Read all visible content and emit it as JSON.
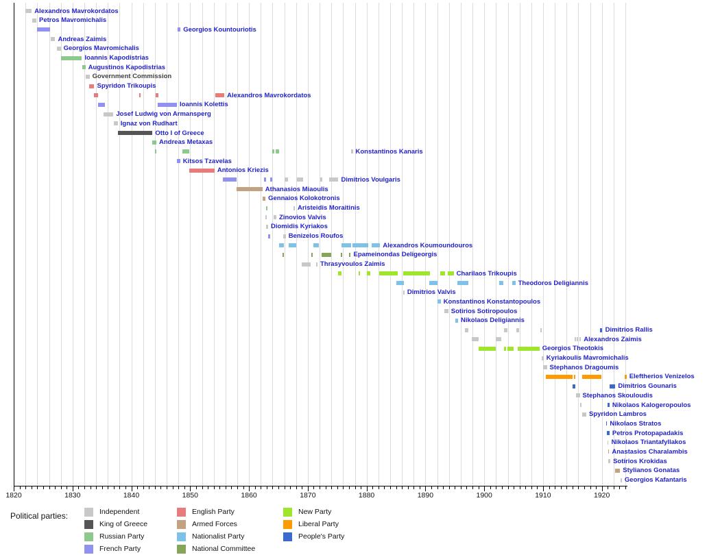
{
  "chart_data": {
    "type": "timeline",
    "title": "",
    "legend_title": "Political parties:",
    "x_axis": {
      "start": 1820,
      "end": 1924.5,
      "decade_tick_labels": [
        "1820",
        "1830",
        "1840",
        "1850",
        "1860",
        "1870",
        "1880",
        "1890",
        "1900",
        "1910",
        "1920"
      ],
      "minor_tick_every_years": 1,
      "gridline_every_years": 2,
      "gridline_color": "#dcdcdc",
      "axis_color": "#000000"
    },
    "label_color": "#2222cc",
    "parties": {
      "ind": {
        "label": "Independent",
        "color": "#c8c8c8"
      },
      "king": {
        "label": "King of Greece",
        "color": "#555555"
      },
      "rus": {
        "label": "Russian Party",
        "color": "#8dc88d"
      },
      "fr": {
        "label": "French Party",
        "color": "#9191ef"
      },
      "eng": {
        "label": "English Party",
        "color": "#e87b7b"
      },
      "arm": {
        "label": "Armed Forces",
        "color": "#c3a281"
      },
      "nat": {
        "label": "Nationalist Party",
        "color": "#7ec2e8"
      },
      "nc": {
        "label": "National Committee",
        "color": "#86a558"
      },
      "new": {
        "label": "New Party",
        "color": "#9fe52c"
      },
      "lib": {
        "label": "Liberal Party",
        "color": "#ff9b00"
      },
      "peo": {
        "label": "People's Party",
        "color": "#3a6ad0"
      }
    },
    "legend_columns": [
      [
        "ind",
        "king",
        "rus",
        "fr"
      ],
      [
        "eng",
        "arm",
        "nat",
        "nc"
      ],
      [
        "new",
        "lib",
        "peo"
      ]
    ],
    "people": [
      {
        "name": "Alexandros Mavrokordatos",
        "segments": [
          {
            "s": 1822.0,
            "e": 1823.05,
            "p": "ind"
          }
        ]
      },
      {
        "name": "Petros Mavromichalis",
        "segments": [
          {
            "s": 1823.1,
            "e": 1823.85,
            "p": "ind"
          }
        ]
      },
      {
        "name": "Georgios Kountouriotis",
        "segments": [
          {
            "s": 1823.9,
            "e": 1826.2,
            "p": "fr"
          },
          {
            "s": 1847.9,
            "e": 1848.35,
            "p": "fr"
          }
        ]
      },
      {
        "name": "Andreas Zaimis",
        "segments": [
          {
            "s": 1826.3,
            "e": 1827.05,
            "p": "ind"
          }
        ]
      },
      {
        "name": "Georgios Mavromichalis",
        "segments": [
          {
            "s": 1827.3,
            "e": 1828.0,
            "p": "ind"
          }
        ]
      },
      {
        "name": "Ioannis Kapodistrias",
        "segments": [
          {
            "s": 1828.0,
            "e": 1831.6,
            "p": "rus"
          }
        ]
      },
      {
        "name": "Augustinos Kapodistrias",
        "segments": [
          {
            "s": 1831.65,
            "e": 1832.2,
            "p": "rus"
          }
        ]
      },
      {
        "name": "Government Commission",
        "text_color": "#404040",
        "segments": [
          {
            "s": 1832.25,
            "e": 1832.9,
            "p": "ind"
          }
        ]
      },
      {
        "name": "Spyridon Trikoupis",
        "segments": [
          {
            "s": 1832.85,
            "e": 1833.7,
            "p": "eng"
          }
        ]
      },
      {
        "name": "Alexandros Mavrokordatos",
        "segments": [
          {
            "s": 1833.65,
            "e": 1834.4,
            "p": "eng"
          },
          {
            "s": 1841.3,
            "e": 1841.55,
            "p": "eng"
          },
          {
            "s": 1844.1,
            "e": 1844.6,
            "p": "eng"
          },
          {
            "s": 1854.3,
            "e": 1855.8,
            "p": "eng"
          }
        ]
      },
      {
        "name": "Ioannis Kolettis",
        "segments": [
          {
            "s": 1834.35,
            "e": 1835.5,
            "p": "fr"
          },
          {
            "s": 1844.5,
            "e": 1847.75,
            "p": "fr"
          }
        ]
      },
      {
        "name": "Josef Ludwig von Armansperg",
        "segments": [
          {
            "s": 1835.3,
            "e": 1836.95,
            "p": "ind"
          }
        ]
      },
      {
        "name": "Ignaz von Rudhart",
        "segments": [
          {
            "s": 1837.0,
            "e": 1837.7,
            "p": "ind"
          }
        ]
      },
      {
        "name": "Otto I of Greece",
        "segments": [
          {
            "s": 1837.7,
            "e": 1843.6,
            "p": "king"
          }
        ]
      },
      {
        "name": "Andreas Metaxas",
        "segments": [
          {
            "s": 1843.55,
            "e": 1844.25,
            "p": "rus"
          }
        ]
      },
      {
        "name": "Konstantinos Kanaris",
        "segments": [
          {
            "s": 1844.05,
            "e": 1844.3,
            "p": "rus"
          },
          {
            "s": 1848.7,
            "e": 1849.9,
            "p": "rus"
          },
          {
            "s": 1864.0,
            "e": 1864.35,
            "p": "rus"
          },
          {
            "s": 1864.55,
            "e": 1865.1,
            "p": "rus"
          },
          {
            "s": 1877.3,
            "e": 1877.65,
            "p": "ind"
          }
        ]
      },
      {
        "name": "Kitsos Tzavelas",
        "segments": [
          {
            "s": 1847.7,
            "e": 1848.3,
            "p": "fr"
          }
        ]
      },
      {
        "name": "Antonios Kriezis",
        "segments": [
          {
            "s": 1849.85,
            "e": 1854.15,
            "p": "eng"
          }
        ]
      },
      {
        "name": "Dimitrios Voulgaris",
        "segments": [
          {
            "s": 1855.55,
            "e": 1857.9,
            "p": "fr"
          },
          {
            "s": 1862.55,
            "e": 1862.85,
            "p": "fr"
          },
          {
            "s": 1863.65,
            "e": 1863.95,
            "p": "fr"
          },
          {
            "s": 1866.05,
            "e": 1866.65,
            "p": "ind"
          },
          {
            "s": 1868.15,
            "e": 1869.25,
            "p": "ind"
          },
          {
            "s": 1872.1,
            "e": 1872.45,
            "p": "ind"
          },
          {
            "s": 1873.65,
            "e": 1875.2,
            "p": "ind"
          }
        ]
      },
      {
        "name": "Athanasios Miaoulis",
        "segments": [
          {
            "s": 1857.9,
            "e": 1862.3,
            "p": "arm"
          }
        ]
      },
      {
        "name": "Gennaios Kolokotronis",
        "segments": [
          {
            "s": 1862.3,
            "e": 1862.8,
            "p": "arm"
          }
        ]
      },
      {
        "name": "Aristeidis Moraitinis",
        "segments": [
          {
            "s": 1862.85,
            "e": 1863.1,
            "p": "rus"
          },
          {
            "s": 1867.55,
            "e": 1867.8,
            "p": "ind"
          }
        ]
      },
      {
        "name": "Zinovios Valvis",
        "segments": [
          {
            "s": 1862.8,
            "e": 1863.0,
            "p": "ind"
          },
          {
            "s": 1864.15,
            "e": 1864.65,
            "p": "ind"
          }
        ]
      },
      {
        "name": "Diomidis Kyriakos",
        "segments": [
          {
            "s": 1862.85,
            "e": 1863.25,
            "p": "ind"
          }
        ]
      },
      {
        "name": "Benizelos Roufos",
        "segments": [
          {
            "s": 1863.2,
            "e": 1863.6,
            "p": "fr"
          },
          {
            "s": 1865.8,
            "e": 1866.25,
            "p": "ind"
          }
        ]
      },
      {
        "name": "Alexandros Koumoundouros",
        "segments": [
          {
            "s": 1865.1,
            "e": 1866.0,
            "p": "nat"
          },
          {
            "s": 1866.8,
            "e": 1868.0,
            "p": "nat"
          },
          {
            "s": 1870.9,
            "e": 1871.85,
            "p": "nat"
          },
          {
            "s": 1875.7,
            "e": 1877.35,
            "p": "nat"
          },
          {
            "s": 1877.6,
            "e": 1880.3,
            "p": "nat"
          },
          {
            "s": 1880.8,
            "e": 1882.3,
            "p": "nat"
          }
        ]
      },
      {
        "name": "Epameinondas Deligeorgis",
        "segments": [
          {
            "s": 1865.65,
            "e": 1865.95,
            "p": "nc"
          },
          {
            "s": 1870.55,
            "e": 1870.85,
            "p": "nc"
          },
          {
            "s": 1872.4,
            "e": 1874.0,
            "p": "nc"
          },
          {
            "s": 1875.55,
            "e": 1875.8,
            "p": "nc"
          },
          {
            "s": 1877.0,
            "e": 1877.3,
            "p": "nc"
          }
        ]
      },
      {
        "name": "Thrasyvoulos Zaimis",
        "segments": [
          {
            "s": 1868.95,
            "e": 1870.5,
            "p": "ind"
          },
          {
            "s": 1871.4,
            "e": 1871.65,
            "p": "ind"
          }
        ]
      },
      {
        "name": "Charilaos Trikoupis",
        "segments": [
          {
            "s": 1875.1,
            "e": 1875.7,
            "p": "new"
          },
          {
            "s": 1878.6,
            "e": 1878.85,
            "p": "new"
          },
          {
            "s": 1880.0,
            "e": 1880.6,
            "p": "new"
          },
          {
            "s": 1882.1,
            "e": 1885.3,
            "p": "new"
          },
          {
            "s": 1886.2,
            "e": 1890.75,
            "p": "new"
          },
          {
            "s": 1892.5,
            "e": 1893.3,
            "p": "new"
          },
          {
            "s": 1893.75,
            "e": 1894.8,
            "p": "new"
          }
        ]
      },
      {
        "name": "Theodoros Deligiannis",
        "segments": [
          {
            "s": 1885.0,
            "e": 1886.3,
            "p": "nat"
          },
          {
            "s": 1890.7,
            "e": 1892.0,
            "p": "nat"
          },
          {
            "s": 1895.4,
            "e": 1897.3,
            "p": "nat"
          },
          {
            "s": 1902.5,
            "e": 1903.2,
            "p": "nat"
          },
          {
            "s": 1904.7,
            "e": 1905.3,
            "p": "nat"
          }
        ]
      },
      {
        "name": "Dimitrios Valvis",
        "segments": [
          {
            "s": 1886.2,
            "e": 1886.45,
            "p": "ind"
          }
        ]
      },
      {
        "name": "Konstantinos Konstantopoulos",
        "segments": [
          {
            "s": 1892.0,
            "e": 1892.6,
            "p": "nat"
          }
        ]
      },
      {
        "name": "Sotirios Sotiropoulos",
        "segments": [
          {
            "s": 1893.2,
            "e": 1893.9,
            "p": "ind"
          }
        ]
      },
      {
        "name": "Nikolaos Deligiannis",
        "segments": [
          {
            "s": 1895.1,
            "e": 1895.55,
            "p": "nat"
          }
        ]
      },
      {
        "name": "Dimitrios Rallis",
        "segments": [
          {
            "s": 1896.7,
            "e": 1897.3,
            "p": "ind"
          },
          {
            "s": 1903.35,
            "e": 1903.95,
            "p": "ind"
          },
          {
            "s": 1905.45,
            "e": 1905.95,
            "p": "ind"
          },
          {
            "s": 1909.55,
            "e": 1909.8,
            "p": "ind"
          },
          {
            "s": 1919.7,
            "e": 1920.1,
            "p": "peo"
          }
        ]
      },
      {
        "name": "Alexandros Zaimis",
        "segments": [
          {
            "s": 1897.9,
            "e": 1899.05,
            "p": "ind"
          },
          {
            "s": 1901.95,
            "e": 1902.9,
            "p": "ind"
          },
          {
            "s": 1915.4,
            "e": 1915.6,
            "p": "ind"
          },
          {
            "s": 1915.7,
            "e": 1915.95,
            "p": "ind"
          },
          {
            "s": 1916.2,
            "e": 1916.45,
            "p": "ind"
          }
        ]
      },
      {
        "name": "Georgios Theotokis",
        "segments": [
          {
            "s": 1899.05,
            "e": 1901.95,
            "p": "new"
          },
          {
            "s": 1903.3,
            "e": 1903.7,
            "p": "new"
          },
          {
            "s": 1903.95,
            "e": 1905.0,
            "p": "new"
          },
          {
            "s": 1905.7,
            "e": 1909.4,
            "p": "new"
          }
        ]
      },
      {
        "name": "Kyriakoulis Mavromichalis",
        "segments": [
          {
            "s": 1909.8,
            "e": 1910.1,
            "p": "ind"
          }
        ]
      },
      {
        "name": "Stephanos Dragoumis",
        "segments": [
          {
            "s": 1909.95,
            "e": 1910.65,
            "p": "ind"
          }
        ]
      },
      {
        "name": "Eleftherios Venizelos",
        "segments": [
          {
            "s": 1910.45,
            "e": 1915.0,
            "p": "lib"
          },
          {
            "s": 1915.25,
            "e": 1915.5,
            "p": "lib"
          },
          {
            "s": 1916.65,
            "e": 1919.9,
            "p": "lib"
          },
          {
            "s": 1923.9,
            "e": 1924.2,
            "p": "lib"
          }
        ]
      },
      {
        "name": "Dimitrios Gounaris",
        "segments": [
          {
            "s": 1915.0,
            "e": 1915.5,
            "p": "peo"
          },
          {
            "s": 1921.35,
            "e": 1922.3,
            "p": "peo"
          }
        ]
      },
      {
        "name": "Stephanos Skouloudis",
        "segments": [
          {
            "s": 1915.6,
            "e": 1916.25,
            "p": "ind"
          }
        ]
      },
      {
        "name": "Nikolaos Kalogeropoulos",
        "segments": [
          {
            "s": 1916.3,
            "e": 1916.5,
            "p": "ind"
          },
          {
            "s": 1921.0,
            "e": 1921.3,
            "p": "peo"
          }
        ]
      },
      {
        "name": "Spyridon Lambros",
        "segments": [
          {
            "s": 1916.6,
            "e": 1917.35,
            "p": "ind"
          }
        ]
      },
      {
        "name": "Nikolaos Stratos",
        "segments": [
          {
            "s": 1920.7,
            "e": 1920.9,
            "p": "peo"
          }
        ]
      },
      {
        "name": "Petros Protopapadakis",
        "segments": [
          {
            "s": 1920.8,
            "e": 1921.3,
            "p": "peo"
          }
        ]
      },
      {
        "name": "Nikolaos Triantafyllakos",
        "segments": [
          {
            "s": 1920.95,
            "e": 1921.15,
            "p": "ind"
          }
        ]
      },
      {
        "name": "Anastasios Charalambis",
        "segments": [
          {
            "s": 1921.05,
            "e": 1921.25,
            "p": "arm"
          }
        ]
      },
      {
        "name": "Sotirios Krokidas",
        "segments": [
          {
            "s": 1921.05,
            "e": 1921.45,
            "p": "ind"
          }
        ]
      },
      {
        "name": "Stylianos Gonatas",
        "segments": [
          {
            "s": 1922.2,
            "e": 1923.1,
            "p": "arm"
          }
        ]
      },
      {
        "name": "Georgios Kafantaris",
        "segments": [
          {
            "s": 1923.15,
            "e": 1923.4,
            "p": "ind"
          }
        ]
      }
    ]
  }
}
